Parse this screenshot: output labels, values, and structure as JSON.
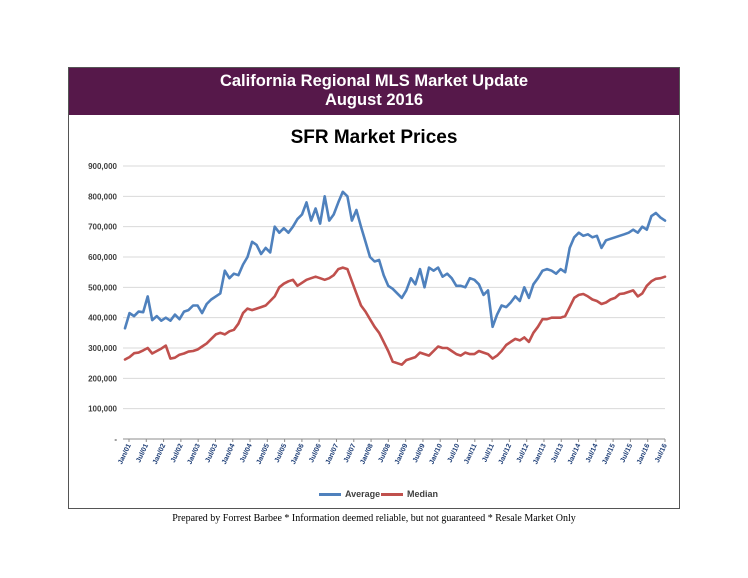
{
  "banner": {
    "line1": "California Regional MLS Market Update",
    "line2": "August 2016",
    "color": "#56184a"
  },
  "footer": "Prepared by Forrest Barbee * Information deemed reliable, but not guaranteed * Resale Market Only",
  "chart_data": {
    "type": "line",
    "title": "SFR Market Prices",
    "xlabel": "",
    "ylabel": "",
    "ylim": [
      0,
      900000
    ],
    "yticks": [
      "-",
      "100,000",
      "200,000",
      "300,000",
      "400,000",
      "500,000",
      "600,000",
      "700,000",
      "800,000",
      "900,000"
    ],
    "grid": true,
    "legend": "bottom",
    "xtick_labels": [
      "Jan/01",
      "Jul/01",
      "Jan/02",
      "Jul/02",
      "Jan/03",
      "Jul/03",
      "Jan/04",
      "Jul/04",
      "Jan/05",
      "Jul/05",
      "Jan/06",
      "Jul/06",
      "Jan/07",
      "Jul/07",
      "Jan/08",
      "Jul/08",
      "Jan/09",
      "Jul/09",
      "Jan/10",
      "Jul/10",
      "Jan/11",
      "Jul/11",
      "Jan/12",
      "Jul/12",
      "Jan/13",
      "Jul/13",
      "Jan/14",
      "Jul/14",
      "Jan/15",
      "Jul/15",
      "Jan/16",
      "Jul/16"
    ],
    "series": [
      {
        "name": "Average",
        "color": "#4f81bd",
        "values": [
          365000,
          415000,
          405000,
          420000,
          418000,
          470000,
          392000,
          405000,
          390000,
          400000,
          390000,
          410000,
          395000,
          420000,
          425000,
          440000,
          440000,
          415000,
          445000,
          460000,
          470000,
          480000,
          555000,
          530000,
          545000,
          540000,
          575000,
          600000,
          650000,
          640000,
          610000,
          630000,
          615000,
          700000,
          680000,
          695000,
          680000,
          700000,
          725000,
          740000,
          780000,
          720000,
          760000,
          710000,
          800000,
          720000,
          740000,
          780000,
          815000,
          800000,
          720000,
          755000,
          700000,
          650000,
          600000,
          585000,
          590000,
          540000,
          505000,
          495000,
          480000,
          465000,
          490000,
          530000,
          510000,
          560000,
          500000,
          565000,
          555000,
          565000,
          535000,
          545000,
          530000,
          505000,
          505000,
          500000,
          530000,
          525000,
          510000,
          475000,
          490000,
          370000,
          410000,
          440000,
          435000,
          450000,
          470000,
          455000,
          500000,
          465000,
          510000,
          530000,
          555000,
          560000,
          555000,
          545000,
          560000,
          550000,
          630000,
          665000,
          680000,
          670000,
          675000,
          665000,
          670000,
          630000,
          655000,
          660000,
          665000,
          670000,
          675000,
          680000,
          690000,
          680000,
          700000,
          690000,
          735000,
          745000,
          730000,
          720000
        ]
      },
      {
        "name": "Median",
        "color": "#c0504d",
        "values": [
          262000,
          270000,
          283000,
          285000,
          292000,
          300000,
          282000,
          290000,
          298000,
          308000,
          265000,
          268000,
          278000,
          282000,
          288000,
          290000,
          295000,
          305000,
          315000,
          330000,
          345000,
          350000,
          345000,
          355000,
          360000,
          380000,
          415000,
          430000,
          425000,
          430000,
          435000,
          440000,
          455000,
          470000,
          500000,
          512000,
          520000,
          525000,
          505000,
          515000,
          525000,
          530000,
          535000,
          530000,
          525000,
          530000,
          540000,
          560000,
          565000,
          560000,
          520000,
          480000,
          440000,
          420000,
          395000,
          370000,
          350000,
          320000,
          290000,
          255000,
          250000,
          245000,
          260000,
          265000,
          270000,
          285000,
          280000,
          275000,
          290000,
          305000,
          300000,
          300000,
          290000,
          280000,
          275000,
          285000,
          280000,
          280000,
          290000,
          285000,
          280000,
          265000,
          275000,
          290000,
          310000,
          320000,
          330000,
          325000,
          335000,
          320000,
          350000,
          370000,
          395000,
          395000,
          400000,
          400000,
          400000,
          405000,
          435000,
          465000,
          475000,
          478000,
          470000,
          460000,
          455000,
          445000,
          450000,
          460000,
          465000,
          478000,
          480000,
          485000,
          490000,
          470000,
          480000,
          505000,
          520000,
          528000,
          530000,
          535000
        ]
      }
    ]
  }
}
